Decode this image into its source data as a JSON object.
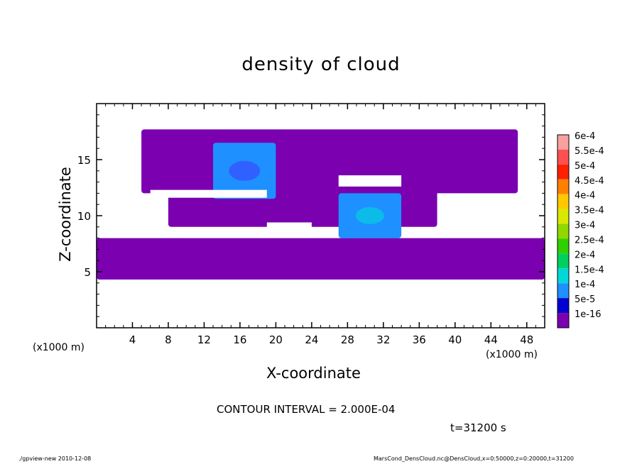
{
  "chart_data": {
    "type": "heatmap",
    "title": "density of cloud",
    "xlabel": "X-coordinate",
    "ylabel": "Z-coordinate",
    "x_unit_left": "(x1000 m)",
    "x_unit_right": "(x1000 m)",
    "xlim": [
      0,
      50
    ],
    "ylim": [
      0,
      20
    ],
    "x_ticks": [
      "4",
      "8",
      "12",
      "16",
      "20",
      "24",
      "28",
      "32",
      "36",
      "40",
      "44",
      "48"
    ],
    "y_ticks": [
      "5",
      "10",
      "15"
    ],
    "colorbar_labels": [
      "6e-4",
      "5.5e-4",
      "5e-4",
      "4.5e-4",
      "4e-4",
      "3.5e-4",
      "3e-4",
      "2.5e-4",
      "2e-4",
      "1.5e-4",
      "1e-4",
      "5e-5",
      "1e-16"
    ],
    "colorbar_colors": [
      "#f9a0a0",
      "#ff5050",
      "#ff2000",
      "#ff8000",
      "#ffc800",
      "#d8e800",
      "#90d800",
      "#30d000",
      "#00d060",
      "#00d8d8",
      "#1e90ff",
      "#0000d0",
      "#7a00b0"
    ],
    "contour_interval": "CONTOUR INTERVAL = 2.000E-04",
    "time_label": "t=31200 s",
    "regions": [
      {
        "level": "1e-16",
        "x": [
          0,
          50
        ],
        "z": [
          4.3,
          8
        ]
      },
      {
        "level": "1e-16",
        "x": [
          5,
          47
        ],
        "z": [
          12,
          17.7
        ]
      },
      {
        "level": "1e-16",
        "x": [
          8,
          38
        ],
        "z": [
          9,
          12.5
        ]
      },
      {
        "level": "1e-4",
        "x": [
          13,
          20
        ],
        "z": [
          11.5,
          16.5
        ]
      },
      {
        "level": "1e-4",
        "x": [
          27,
          34
        ],
        "z": [
          8,
          12
        ]
      }
    ]
  },
  "footer": {
    "left": "./gpview-new   2010-12-08",
    "right": "MarsCond_DensCloud.nc@DensCloud,x=0:50000,z=0:20000,t=31200"
  },
  "colors": {
    "axis": "#000000",
    "background": "#ffffff"
  }
}
